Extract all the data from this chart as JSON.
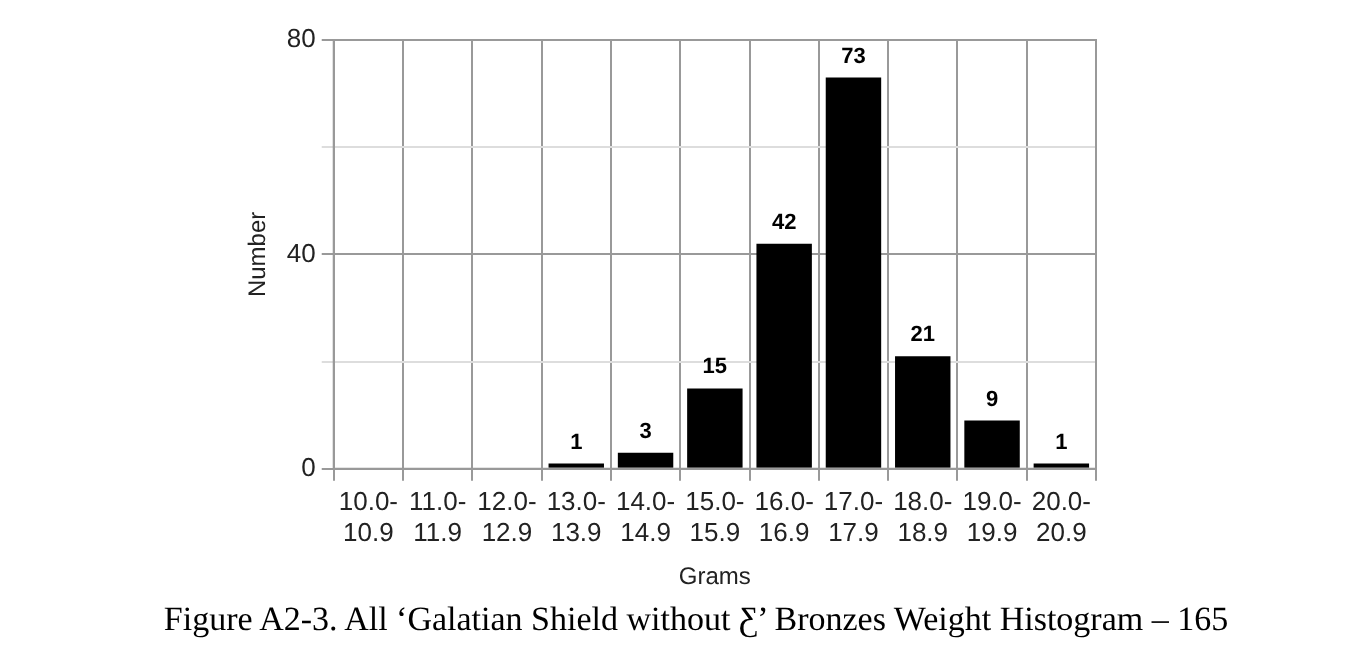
{
  "chart_data": {
    "type": "bar",
    "title": "Figure A2-3. All ‘Galatian Shield without Ƹ’ Bronzes Weight Histogram – 165",
    "xlabel": "Grams",
    "ylabel": "Number",
    "categories": [
      "10.0-10.9",
      "11.0-11.9",
      "12.0-12.9",
      "13.0-13.9",
      "14.0-14.9",
      "15.0-15.9",
      "16.0-16.9",
      "17.0-17.9",
      "18.0-18.9",
      "19.0-19.9",
      "20.0-20.9"
    ],
    "values": [
      0,
      0,
      0,
      1,
      3,
      15,
      42,
      73,
      21,
      9,
      1
    ],
    "value_labels": [
      null,
      null,
      null,
      "1",
      "3",
      "15",
      "42",
      "73",
      "21",
      "9",
      "1"
    ],
    "color": "#000000",
    "ylim": [
      0,
      80
    ],
    "yticks": [
      0,
      {
        "value": 20,
        "label": null
      },
      40,
      {
        "value": 60,
        "label": null
      },
      80
    ],
    "grid": true,
    "legend": false
  }
}
